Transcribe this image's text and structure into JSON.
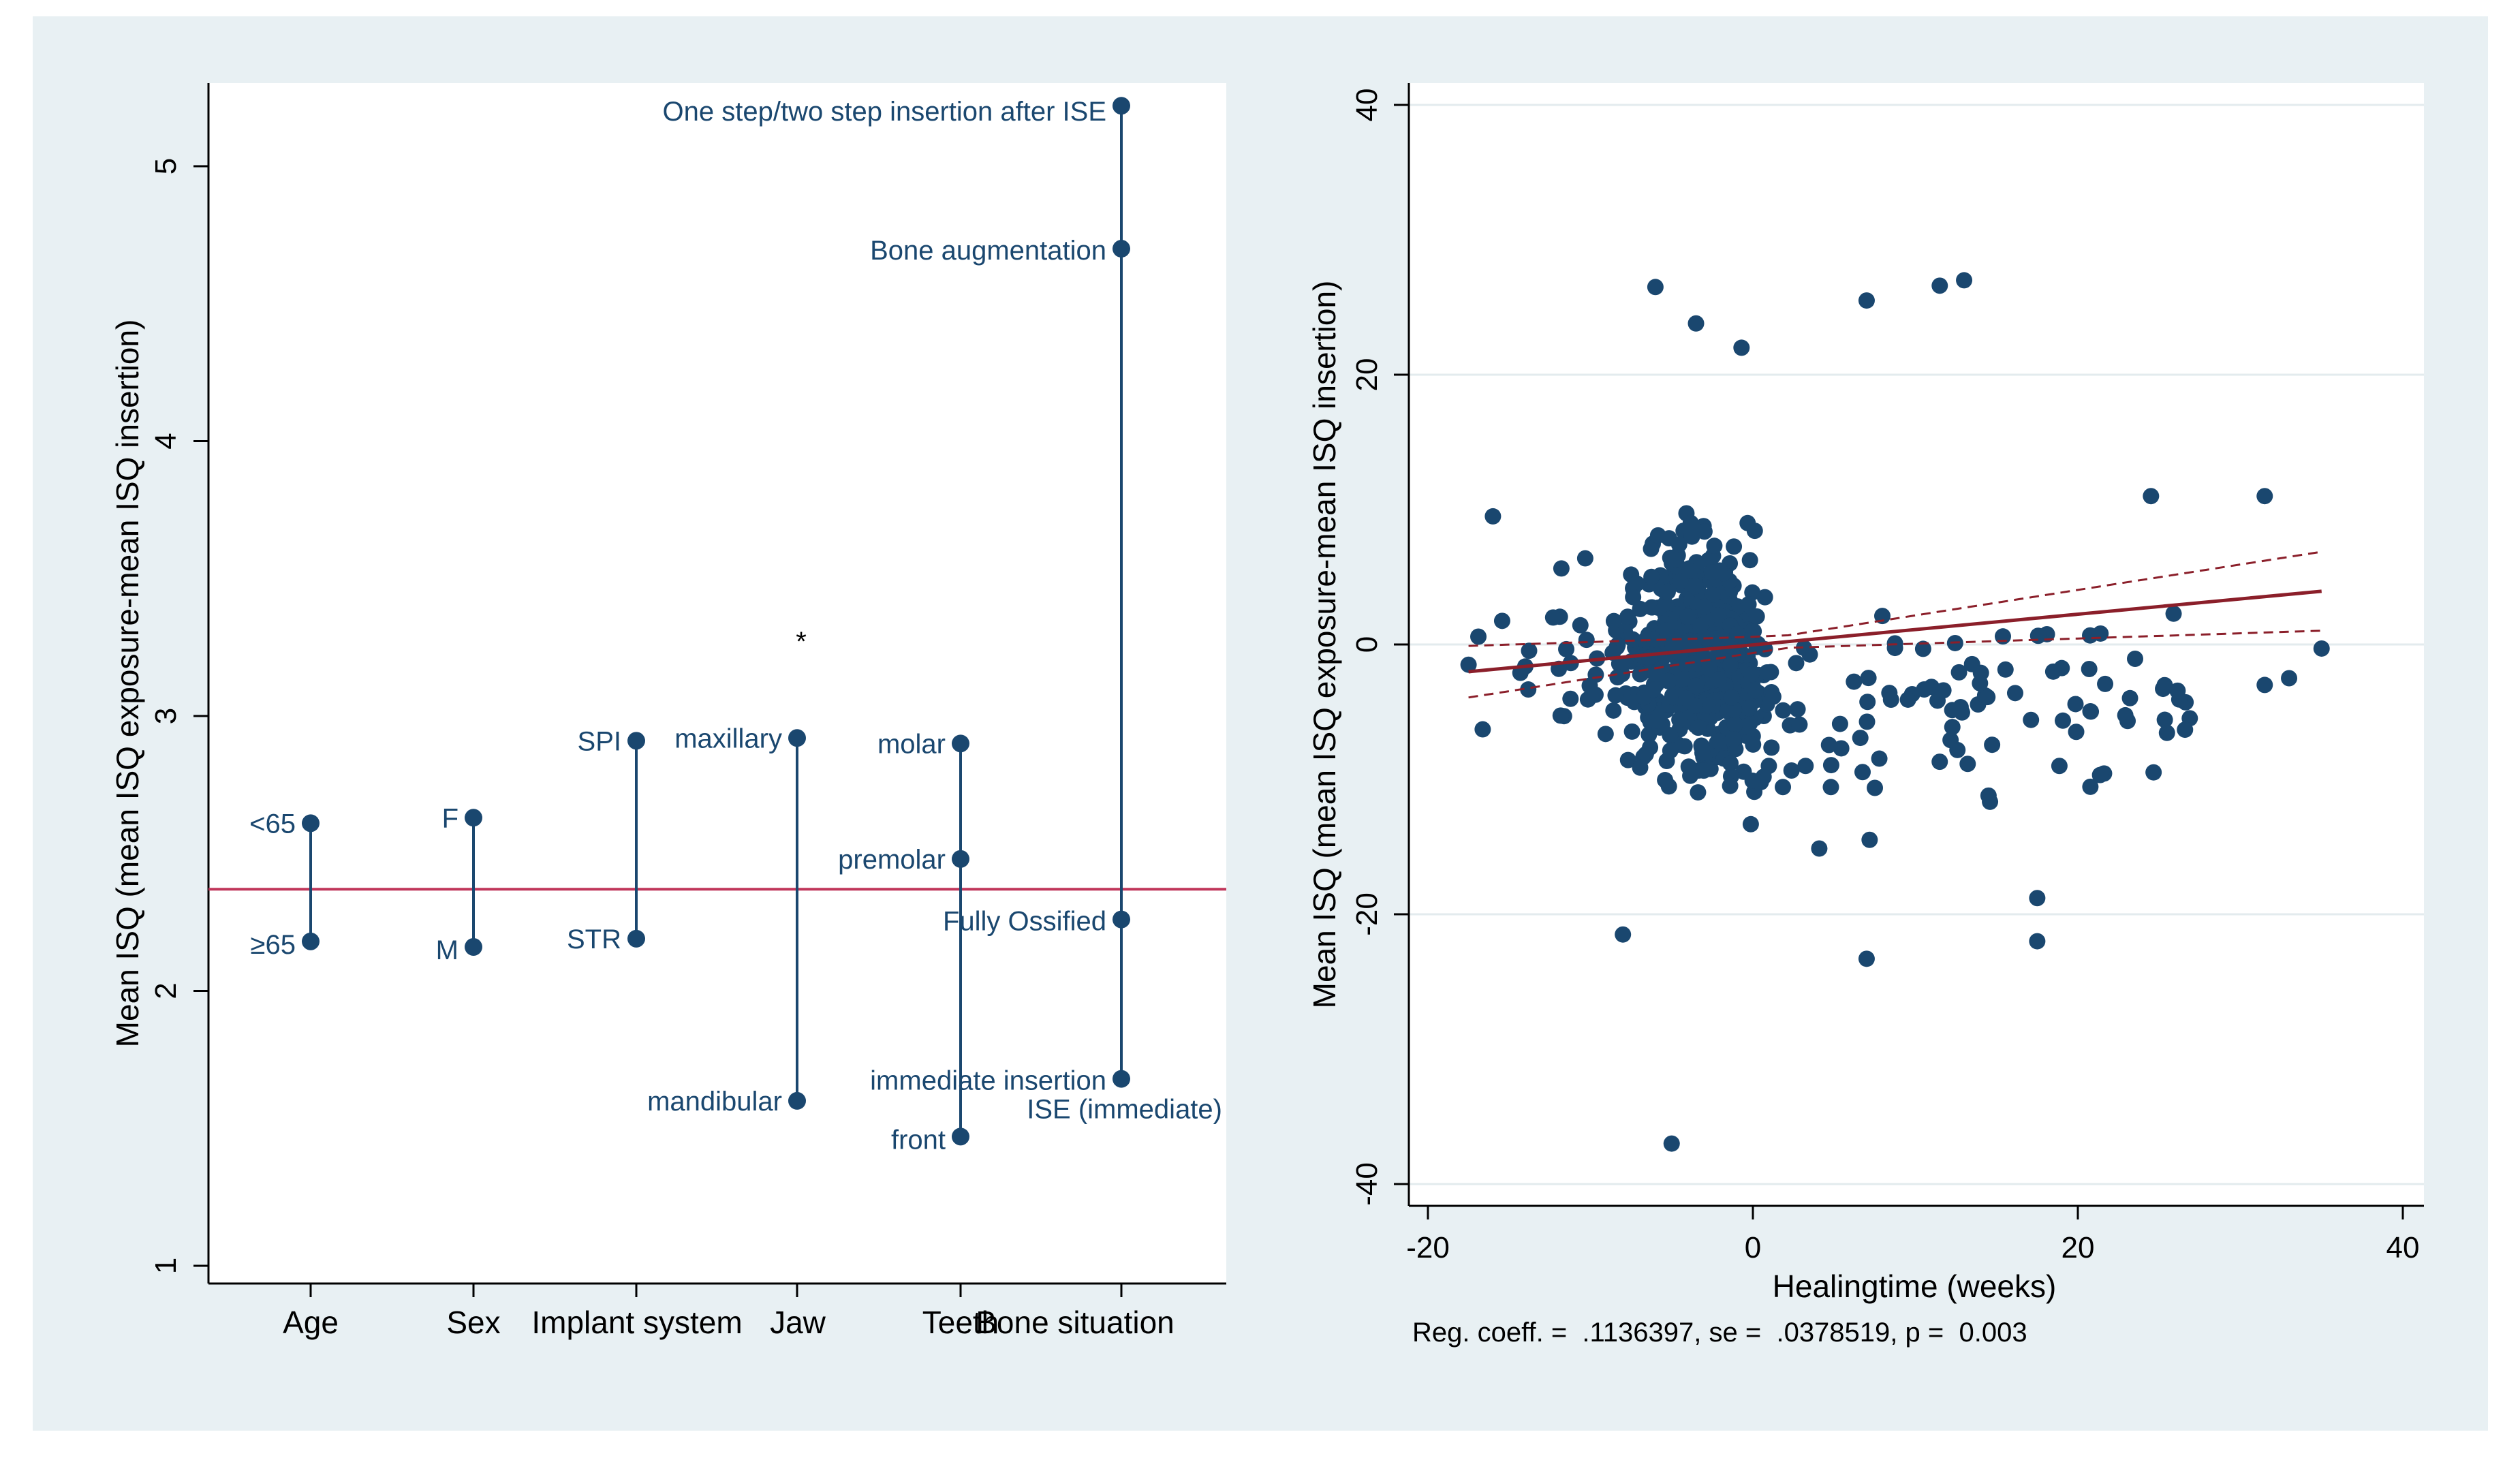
{
  "chart_data": [
    {
      "type": "dot-range",
      "title": "",
      "ylabel": "Mean ISQ (mean ISQ exposure-mean ISQ insertion)",
      "xlabel": "",
      "ylim": [
        1,
        5.3
      ],
      "yticks": [
        1,
        2,
        3,
        4,
        5
      ],
      "reference_line": 2.37,
      "reference_line_color": "#c0365a",
      "marker_color": "#1a476f",
      "categories": [
        "Age",
        "Sex",
        "Implant system",
        "Jaw",
        "Teeth",
        "Bone situation"
      ],
      "groups": [
        {
          "category": "Age",
          "points": [
            {
              "label": "<65",
              "value": 2.61
            },
            {
              "label": "≥65",
              "value": 2.18
            }
          ]
        },
        {
          "category": "Sex",
          "points": [
            {
              "label": "F",
              "value": 2.63
            },
            {
              "label": "M",
              "value": 2.16
            }
          ]
        },
        {
          "category": "Implant system",
          "points": [
            {
              "label": "SPI",
              "value": 2.91
            },
            {
              "label": "STR",
              "value": 2.19
            }
          ]
        },
        {
          "category": "Jaw",
          "points": [
            {
              "label": "maxillary",
              "value": 2.92
            },
            {
              "label": "mandibular",
              "value": 1.6
            }
          ],
          "annotation": "*"
        },
        {
          "category": "Teeth",
          "points": [
            {
              "label": "molar",
              "value": 2.9
            },
            {
              "label": "premolar",
              "value": 2.48
            },
            {
              "label": "front",
              "value": 1.47
            }
          ]
        },
        {
          "category": "Bone situation",
          "points": [
            {
              "label": "One step/two step insertion after ISE",
              "value": 5.22
            },
            {
              "label": "Bone augmentation",
              "value": 4.7
            },
            {
              "label": "Fully Ossified",
              "value": 2.26
            },
            {
              "label": "immediate insertion",
              "value": 1.68
            },
            {
              "label": "ISE (immediate)",
              "value": 1.68
            }
          ]
        }
      ]
    },
    {
      "type": "scatter",
      "title": "",
      "xlabel": "Healingtime (weeks)",
      "ylabel": "Mean ISQ (mean ISQ exposure-mean ISQ insertion)",
      "xlim": [
        -20,
        40
      ],
      "ylim": [
        -40,
        40
      ],
      "xticks": [
        -20,
        0,
        20,
        40
      ],
      "yticks": [
        -40,
        -20,
        0,
        20,
        40
      ],
      "grid": true,
      "marker_color": "#1a476f",
      "fit_line": {
        "slope": 0.1136397,
        "intercept": -0.03,
        "x_range": [
          -17.5,
          35
        ],
        "color": "#8b1f2a",
        "ci": "dashed"
      },
      "footnote": "Reg. coeff. =  .1136397, se =  .0378519, p =  0.003",
      "points_notable": [
        {
          "x": -6,
          "y": 26.5
        },
        {
          "x": -3.5,
          "y": 23.8
        },
        {
          "x": -0.7,
          "y": 22
        },
        {
          "x": 7,
          "y": 25.5
        },
        {
          "x": 11.5,
          "y": 26.6
        },
        {
          "x": 13,
          "y": 27
        },
        {
          "x": -5,
          "y": -37
        },
        {
          "x": -8,
          "y": -21.5
        },
        {
          "x": 7,
          "y": -23.3
        },
        {
          "x": 17.5,
          "y": -22
        },
        {
          "x": 17.5,
          "y": -18.8
        },
        {
          "x": 35,
          "y": -0.3
        },
        {
          "x": 33,
          "y": -2.5
        },
        {
          "x": 31.5,
          "y": -3
        },
        {
          "x": 31.5,
          "y": 11
        },
        {
          "x": 24.5,
          "y": 11
        },
        {
          "x": -16,
          "y": 9.5
        },
        {
          "x": -17.5,
          "y": -1.5
        }
      ]
    }
  ]
}
